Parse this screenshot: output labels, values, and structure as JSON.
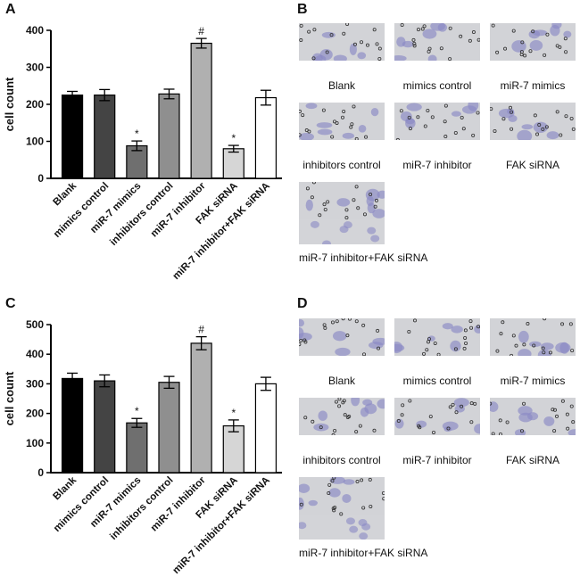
{
  "panels": {
    "A": "A",
    "B": "B",
    "C": "C",
    "D": "D"
  },
  "chart_data": [
    {
      "type": "bar",
      "panel": "A",
      "ylabel": "cell count",
      "ylim": [
        0,
        400
      ],
      "yticks": [
        0,
        100,
        200,
        300,
        400
      ],
      "categories": [
        "Blank",
        "mimics control",
        "miR-7 mimics",
        "inhibitors control",
        "miR-7 inhibitor",
        "FAK siRNA",
        "miR-7 inhibitor+FAK siRNA"
      ],
      "values": [
        225,
        225,
        88,
        228,
        365,
        80,
        218
      ],
      "errors": [
        10,
        15,
        13,
        13,
        13,
        9,
        20
      ],
      "annotations": [
        "",
        "",
        "*",
        "",
        "#",
        "*",
        ""
      ],
      "colors": [
        "#000000",
        "#444444",
        "#6f6f6f",
        "#8f8f8f",
        "#b0b0b0",
        "#d6d6d6",
        "#ffffff"
      ]
    },
    {
      "type": "bar",
      "panel": "C",
      "ylabel": "cell count",
      "ylim": [
        0,
        500
      ],
      "yticks": [
        0,
        100,
        200,
        300,
        400,
        500
      ],
      "categories": [
        "Blank",
        "mimics control",
        "miR-7 mimics",
        "inhibitors control",
        "miR-7 inhibitor",
        "FAK siRNA",
        "miR-7 inhibitor+FAK siRNA"
      ],
      "values": [
        318,
        310,
        168,
        305,
        437,
        158,
        300
      ],
      "errors": [
        18,
        20,
        15,
        20,
        22,
        20,
        22
      ],
      "annotations": [
        "",
        "",
        "*",
        "",
        "#",
        "*",
        ""
      ],
      "colors": [
        "#000000",
        "#444444",
        "#6f6f6f",
        "#8f8f8f",
        "#b0b0b0",
        "#d6d6d6",
        "#ffffff"
      ]
    }
  ],
  "micrographs_B": [
    {
      "label": "Blank",
      "seed": 3
    },
    {
      "label": "mimics control",
      "seed": 7
    },
    {
      "label": "miR-7 mimics",
      "seed": 11
    },
    {
      "label": "inhibitors control",
      "seed": 13
    },
    {
      "label": "miR-7 inhibitor",
      "seed": 17
    },
    {
      "label": "FAK siRNA",
      "seed": 19
    },
    {
      "label": "miR-7 inhibitor+FAK siRNA",
      "seed": 23
    }
  ],
  "micrographs_D": [
    {
      "label": "Blank",
      "seed": 29
    },
    {
      "label": "mimics control",
      "seed": 31
    },
    {
      "label": "miR-7 mimics",
      "seed": 37
    },
    {
      "label": "inhibitors control",
      "seed": 41
    },
    {
      "label": "miR-7 inhibitor",
      "seed": 43
    },
    {
      "label": "FAK siRNA",
      "seed": 47
    },
    {
      "label": "miR-7 inhibitor+FAK siRNA",
      "seed": 53
    }
  ]
}
